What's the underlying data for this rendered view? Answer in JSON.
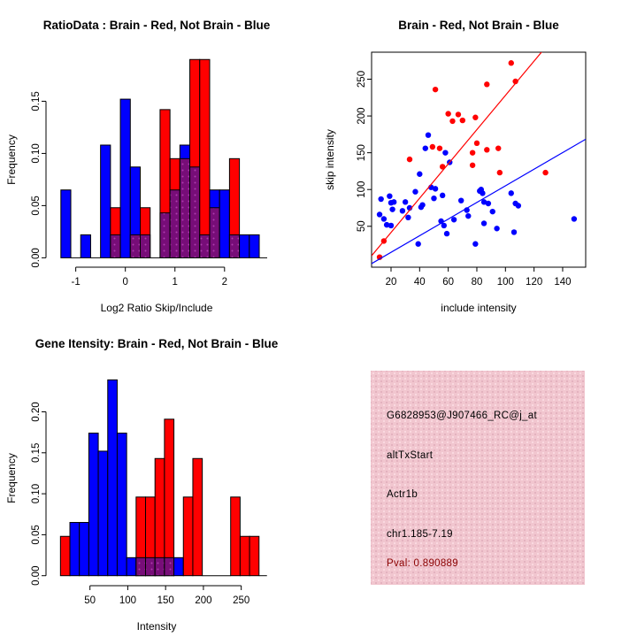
{
  "colors": {
    "red": "#FF0000",
    "blue": "#0000FF",
    "purple_base": "#770D78",
    "purple_dot": "#AD3CAE",
    "dark_red": "#8B0000",
    "pink_box": "#F1C6CF",
    "axis": "#000000"
  },
  "chart_data": [
    {
      "id": "ratio_hist",
      "type": "bar",
      "subtype": "overlaid-histograms",
      "title": "RatioData : Brain - Red, Not Brain - Blue",
      "xlabel": "Log2 Ratio Skip/Include",
      "ylabel": "Frequency",
      "legend": "none",
      "grid": false,
      "xlim": [
        -1.6,
        2.86
      ],
      "ylim": [
        -0.009,
        0.197
      ],
      "x_ticks": [
        -1,
        0,
        1,
        2
      ],
      "x_tick_labels": [
        "-1",
        "0",
        "1",
        "2"
      ],
      "y_ticks": [
        0,
        0.05,
        0.1,
        0.15
      ],
      "y_tick_labels": [
        "0.00",
        "0.05",
        "0.10",
        "0.15"
      ],
      "bin_width": 0.2,
      "series_note": "blue = Not Brain frequency, red = Brain frequency, purple = overlap",
      "bins": [
        {
          "x": -1.3,
          "blue": 0.065,
          "red": 0
        },
        {
          "x": -0.9,
          "blue": 0.022,
          "red": 0
        },
        {
          "x": -0.5,
          "blue": 0.108,
          "red": 0
        },
        {
          "x": -0.3,
          "blue": 0.022,
          "red": 0.048
        },
        {
          "x": -0.1,
          "blue": 0.152,
          "red": 0
        },
        {
          "x": 0.1,
          "blue": 0.087,
          "red": 0.022
        },
        {
          "x": 0.3,
          "blue": 0.022,
          "red": 0.048
        },
        {
          "x": 0.7,
          "blue": 0.043,
          "red": 0.142
        },
        {
          "x": 0.9,
          "blue": 0.065,
          "red": 0.095
        },
        {
          "x": 1.1,
          "blue": 0.108,
          "red": 0.095
        },
        {
          "x": 1.3,
          "blue": 0.087,
          "red": 0.19
        },
        {
          "x": 1.5,
          "blue": 0.022,
          "red": 0.19
        },
        {
          "x": 1.7,
          "blue": 0.065,
          "red": 0.048
        },
        {
          "x": 1.9,
          "blue": 0.065,
          "red": 0
        },
        {
          "x": 2.1,
          "blue": 0.022,
          "red": 0.095
        },
        {
          "x": 2.3,
          "blue": 0.022,
          "red": 0
        },
        {
          "x": 2.5,
          "blue": 0.022,
          "red": 0
        }
      ],
      "zero_segments": [
        [
          -1.1,
          -0.9
        ],
        [
          -0.7,
          -0.5
        ],
        [
          0.5,
          0.7
        ],
        [
          2.7,
          2.86
        ]
      ]
    },
    {
      "id": "scatter",
      "type": "scatter",
      "title": "Brain - Red, Not Brain - Blue",
      "xlabel": "include intensity",
      "ylabel": "skip intensity",
      "legend": "none",
      "grid": false,
      "box": true,
      "xlim": [
        6.4,
        156.1
      ],
      "ylim": [
        -5.6,
        286.7
      ],
      "x_ticks": [
        20,
        40,
        60,
        80,
        100,
        120,
        140
      ],
      "x_tick_labels": [
        "20",
        "40",
        "60",
        "80",
        "100",
        "120",
        "140"
      ],
      "y_ticks": [
        50,
        100,
        150,
        200,
        250
      ],
      "y_tick_labels": [
        "50",
        "100",
        "150",
        "200",
        "250"
      ],
      "point_radius": 3.2,
      "series": [
        {
          "name": "Brain",
          "color_key": "red",
          "fit_line": {
            "slope": 2.33,
            "intercept": -5
          },
          "points": [
            [
              12,
              8
            ],
            [
              15,
              30
            ],
            [
              33,
              141
            ],
            [
              49,
              158
            ],
            [
              51,
              236
            ],
            [
              54,
              156
            ],
            [
              56,
              131
            ],
            [
              60,
              203
            ],
            [
              63,
              193
            ],
            [
              67,
              202
            ],
            [
              70,
              194
            ],
            [
              77,
              150
            ],
            [
              77,
              133
            ],
            [
              79,
              198
            ],
            [
              80,
              163
            ],
            [
              87,
              243
            ],
            [
              87,
              154
            ],
            [
              95,
              156
            ],
            [
              96,
              123
            ],
            [
              104,
              272
            ],
            [
              107,
              247
            ],
            [
              128,
              123
            ]
          ]
        },
        {
          "name": "Not Brain",
          "color_key": "blue",
          "fit_line": {
            "slope": 1.13,
            "intercept": -8
          },
          "points": [
            [
              12,
              66
            ],
            [
              13,
              87
            ],
            [
              15,
              60
            ],
            [
              17,
              52
            ],
            [
              19,
              91
            ],
            [
              20,
              82
            ],
            [
              20,
              51
            ],
            [
              21,
              73
            ],
            [
              22,
              83
            ],
            [
              28,
              71
            ],
            [
              30,
              83
            ],
            [
              32,
              62
            ],
            [
              33,
              75
            ],
            [
              37,
              97
            ],
            [
              39,
              26
            ],
            [
              40,
              121
            ],
            [
              41,
              76
            ],
            [
              42,
              79
            ],
            [
              44,
              156
            ],
            [
              46,
              174
            ],
            [
              48,
              103
            ],
            [
              50,
              88
            ],
            [
              51,
              101
            ],
            [
              55,
              57
            ],
            [
              56,
              92
            ],
            [
              57,
              51
            ],
            [
              58,
              150
            ],
            [
              59,
              40
            ],
            [
              61,
              137
            ],
            [
              64,
              59
            ],
            [
              69,
              85
            ],
            [
              73,
              72
            ],
            [
              74,
              64
            ],
            [
              79,
              26
            ],
            [
              82,
              98
            ],
            [
              83,
              100
            ],
            [
              84,
              95
            ],
            [
              85,
              83
            ],
            [
              85,
              54
            ],
            [
              88,
              81
            ],
            [
              91,
              70
            ],
            [
              94,
              47
            ],
            [
              104,
              95
            ],
            [
              106,
              42
            ],
            [
              107,
              81
            ],
            [
              109,
              78
            ],
            [
              148,
              60
            ]
          ]
        }
      ]
    },
    {
      "id": "gene_hist",
      "type": "bar",
      "subtype": "overlaid-histograms",
      "title": "Gene Itensity: Brain - Red, Not Brain - Blue",
      "xlabel": "Intensity",
      "ylabel": "Frequency",
      "legend": "none",
      "grid": false,
      "xlim": [
        -8.1,
        284.3
      ],
      "ylim": [
        -0.0122,
        0.2502
      ],
      "x_ticks": [
        50,
        100,
        150,
        200,
        250
      ],
      "x_tick_labels": [
        "50",
        "100",
        "150",
        "200",
        "250"
      ],
      "y_ticks": [
        0,
        0.05,
        0.1,
        0.15,
        0.2
      ],
      "y_tick_labels": [
        "0.00",
        "0.05",
        "0.10",
        "0.15",
        "0.20"
      ],
      "bin_width": 12.5,
      "series_note": "blue = Not Brain frequency, red = Brain frequency, purple = overlap",
      "bins": [
        {
          "x": 11,
          "blue": 0,
          "red": 0.048
        },
        {
          "x": 23.5,
          "blue": 0.065,
          "red": 0
        },
        {
          "x": 36,
          "blue": 0.065,
          "red": 0
        },
        {
          "x": 48.5,
          "blue": 0.174,
          "red": 0
        },
        {
          "x": 61,
          "blue": 0.152,
          "red": 0
        },
        {
          "x": 73.5,
          "blue": 0.239,
          "red": 0
        },
        {
          "x": 86,
          "blue": 0.174,
          "red": 0
        },
        {
          "x": 98.5,
          "blue": 0.022,
          "red": 0
        },
        {
          "x": 111,
          "blue": 0.022,
          "red": 0.096
        },
        {
          "x": 123.5,
          "blue": 0.022,
          "red": 0.096
        },
        {
          "x": 136,
          "blue": 0.022,
          "red": 0.143
        },
        {
          "x": 148.5,
          "blue": 0.022,
          "red": 0.191
        },
        {
          "x": 161,
          "blue": 0.022,
          "red": 0
        },
        {
          "x": 173.5,
          "blue": 0,
          "red": 0.096
        },
        {
          "x": 186,
          "blue": 0,
          "red": 0.143
        },
        {
          "x": 236,
          "blue": 0,
          "red": 0.096
        },
        {
          "x": 248.5,
          "blue": 0,
          "red": 0.048
        },
        {
          "x": 261,
          "blue": 0,
          "red": 0.048
        }
      ],
      "zero_segments": [
        [
          198.5,
          236
        ],
        [
          273.5,
          284
        ]
      ]
    }
  ],
  "info_box": {
    "background": "#F1C6CF",
    "lines": [
      {
        "text": "G6828953@J907466_RC@j_at",
        "color": "#000000"
      },
      {
        "text": "altTxStart",
        "color": "#000000"
      },
      {
        "text": "Actr1b",
        "color": "#000000"
      },
      {
        "text": "chr1.185-7.19",
        "color": "#000000"
      },
      {
        "text": "Pval: 0.890889",
        "color": "#8B0000"
      }
    ]
  }
}
